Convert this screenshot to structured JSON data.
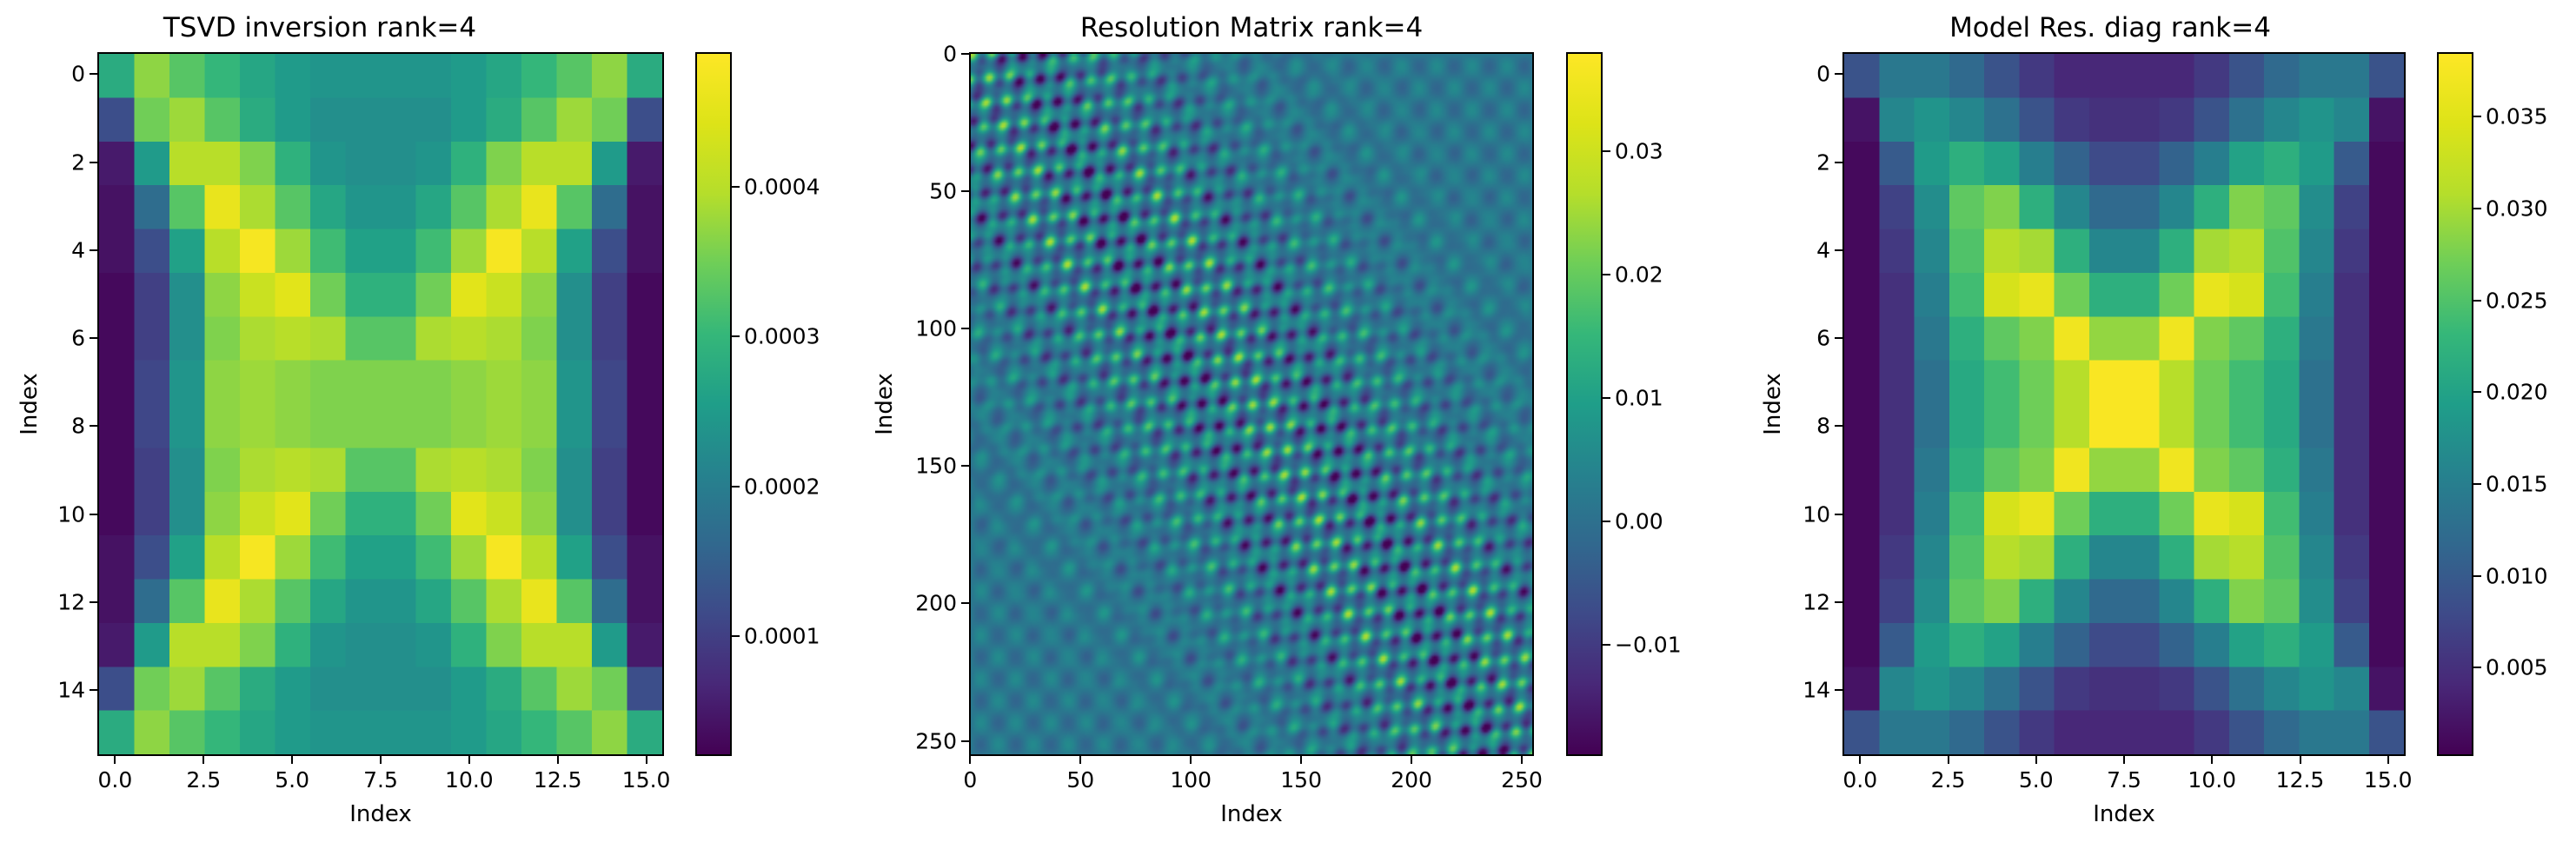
{
  "chart_data": [
    {
      "type": "heatmap",
      "title": "TSVD inversion rank=4",
      "xlabel": "Index",
      "ylabel": "Index",
      "rows": 16,
      "cols": 16,
      "xlim": [
        -0.5,
        15.5
      ],
      "ylim": [
        15.5,
        -0.5
      ],
      "x_ticks": [
        "0.0",
        "2.5",
        "5.0",
        "7.5",
        "10.0",
        "12.5",
        "15.0"
      ],
      "x_tick_values": [
        0,
        2.5,
        5,
        7.5,
        10,
        12.5,
        15
      ],
      "y_ticks": [
        "0",
        "2",
        "4",
        "6",
        "8",
        "10",
        "12",
        "14"
      ],
      "y_tick_values": [
        0,
        2,
        4,
        6,
        8,
        10,
        12,
        14
      ],
      "colorbar": {
        "min": 2e-05,
        "max": 0.00049,
        "ticks": [
          "0.0001",
          "0.0002",
          "0.0003",
          "0.0004"
        ],
        "tick_values": [
          0.0001,
          0.0002,
          0.0003,
          0.0004
        ]
      },
      "colormap": "viridis",
      "values": [
        [
          0.00028,
          0.00037,
          0.00033,
          0.0003,
          0.00027,
          0.00025,
          0.00024,
          0.00024,
          0.00024,
          0.00024,
          0.00025,
          0.00027,
          0.0003,
          0.00033,
          0.00037,
          0.00028
        ],
        [
          0.00012,
          0.00035,
          0.00038,
          0.00033,
          0.00028,
          0.00025,
          0.00023,
          0.00023,
          0.00023,
          0.00023,
          0.00025,
          0.00028,
          0.00033,
          0.00038,
          0.00035,
          0.00012
        ],
        [
          5e-05,
          0.00025,
          0.0004,
          0.0004,
          0.00036,
          0.00029,
          0.00024,
          0.00023,
          0.00023,
          0.00024,
          0.00029,
          0.00036,
          0.0004,
          0.0004,
          0.00025,
          5e-05
        ],
        [
          4e-05,
          0.00017,
          0.00033,
          0.00046,
          0.00039,
          0.00033,
          0.00027,
          0.00024,
          0.00024,
          0.00027,
          0.00033,
          0.00039,
          0.00046,
          0.00033,
          0.00017,
          4e-05
        ],
        [
          4e-05,
          0.00012,
          0.00026,
          0.0004,
          0.00048,
          0.00038,
          0.00031,
          0.00026,
          0.00026,
          0.00031,
          0.00038,
          0.00048,
          0.0004,
          0.00026,
          0.00012,
          4e-05
        ],
        [
          3e-05,
          0.0001,
          0.00023,
          0.00037,
          0.00042,
          0.00045,
          0.00035,
          0.00029,
          0.00029,
          0.00035,
          0.00045,
          0.00042,
          0.00037,
          0.00023,
          0.0001,
          3e-05
        ],
        [
          3e-05,
          0.0001,
          0.00023,
          0.00036,
          0.00039,
          0.0004,
          0.00039,
          0.00033,
          0.00033,
          0.00039,
          0.0004,
          0.00039,
          0.00036,
          0.00023,
          0.0001,
          3e-05
        ],
        [
          3e-05,
          0.00011,
          0.00024,
          0.00037,
          0.00038,
          0.00037,
          0.00036,
          0.00036,
          0.00036,
          0.00036,
          0.00037,
          0.00038,
          0.00037,
          0.00024,
          0.00011,
          3e-05
        ],
        [
          3e-05,
          0.00011,
          0.00024,
          0.00037,
          0.00038,
          0.00037,
          0.00036,
          0.00036,
          0.00036,
          0.00036,
          0.00037,
          0.00038,
          0.00037,
          0.00024,
          0.00011,
          3e-05
        ],
        [
          3e-05,
          0.0001,
          0.00023,
          0.00036,
          0.00039,
          0.0004,
          0.00039,
          0.00033,
          0.00033,
          0.00039,
          0.0004,
          0.00039,
          0.00036,
          0.00023,
          0.0001,
          3e-05
        ],
        [
          3e-05,
          0.0001,
          0.00023,
          0.00037,
          0.00042,
          0.00045,
          0.00035,
          0.00029,
          0.00029,
          0.00035,
          0.00045,
          0.00042,
          0.00037,
          0.00023,
          0.0001,
          3e-05
        ],
        [
          4e-05,
          0.00012,
          0.00026,
          0.0004,
          0.00048,
          0.00038,
          0.00031,
          0.00026,
          0.00026,
          0.00031,
          0.00038,
          0.00048,
          0.0004,
          0.00026,
          0.00012,
          4e-05
        ],
        [
          4e-05,
          0.00017,
          0.00033,
          0.00046,
          0.00039,
          0.00033,
          0.00027,
          0.00024,
          0.00024,
          0.00027,
          0.00033,
          0.00039,
          0.00046,
          0.00033,
          0.00017,
          4e-05
        ],
        [
          5e-05,
          0.00025,
          0.0004,
          0.0004,
          0.00036,
          0.00029,
          0.00024,
          0.00023,
          0.00023,
          0.00024,
          0.00029,
          0.00036,
          0.0004,
          0.0004,
          0.00025,
          5e-05
        ],
        [
          0.00012,
          0.00035,
          0.00038,
          0.00033,
          0.00028,
          0.00025,
          0.00023,
          0.00023,
          0.00023,
          0.00023,
          0.00025,
          0.00028,
          0.00033,
          0.00038,
          0.00035,
          0.00012
        ],
        [
          0.00028,
          0.00037,
          0.00033,
          0.0003,
          0.00027,
          0.00025,
          0.00024,
          0.00024,
          0.00024,
          0.00024,
          0.00025,
          0.00027,
          0.0003,
          0.00033,
          0.00037,
          0.00028
        ]
      ]
    },
    {
      "type": "heatmap",
      "title": "Resolution Matrix rank=4",
      "xlabel": "Index",
      "ylabel": "Index",
      "rows": 256,
      "cols": 256,
      "xlim": [
        -0.5,
        255.5
      ],
      "ylim": [
        255.5,
        -0.5
      ],
      "x_ticks": [
        "0",
        "50",
        "100",
        "150",
        "200",
        "250"
      ],
      "x_tick_values": [
        0,
        50,
        100,
        150,
        200,
        250
      ],
      "y_ticks": [
        "0",
        "50",
        "100",
        "150",
        "200",
        "250"
      ],
      "y_tick_values": [
        0,
        50,
        100,
        150,
        200,
        250
      ],
      "colorbar": {
        "min": -0.019,
        "max": 0.038,
        "ticks": [
          "−0.01",
          "0.00",
          "0.01",
          "0.02",
          "0.03"
        ],
        "tick_values": [
          -0.01,
          0.0,
          0.01,
          0.02,
          0.03
        ]
      },
      "colormap": "viridis",
      "values_note": "256x256 oscillatory field reconstructed by script"
    },
    {
      "type": "heatmap",
      "title": "Model Res. diag rank=4",
      "xlabel": "Index",
      "ylabel": "Index",
      "rows": 16,
      "cols": 16,
      "xlim": [
        -0.5,
        15.5
      ],
      "ylim": [
        15.5,
        -0.5
      ],
      "x_ticks": [
        "0.0",
        "2.5",
        "5.0",
        "7.5",
        "10.0",
        "12.5",
        "15.0"
      ],
      "x_tick_values": [
        0,
        2.5,
        5,
        7.5,
        10,
        12.5,
        15
      ],
      "y_ticks": [
        "0",
        "2",
        "4",
        "6",
        "8",
        "10",
        "12",
        "14"
      ],
      "y_tick_values": [
        0,
        2,
        4,
        6,
        8,
        10,
        12,
        14
      ],
      "colorbar": {
        "min": 0.0002,
        "max": 0.0385,
        "ticks": [
          "0.005",
          "0.010",
          "0.015",
          "0.020",
          "0.025",
          "0.030",
          "0.035"
        ],
        "tick_values": [
          0.005,
          0.01,
          0.015,
          0.02,
          0.025,
          0.03,
          0.035
        ]
      },
      "colormap": "viridis",
      "values": [
        [
          0.009,
          0.014,
          0.014,
          0.012,
          0.009,
          0.006,
          0.004,
          0.004,
          0.004,
          0.004,
          0.006,
          0.009,
          0.012,
          0.014,
          0.014,
          0.009
        ],
        [
          0.002,
          0.016,
          0.018,
          0.016,
          0.013,
          0.009,
          0.006,
          0.005,
          0.005,
          0.006,
          0.009,
          0.013,
          0.016,
          0.018,
          0.016,
          0.002
        ],
        [
          0.001,
          0.01,
          0.019,
          0.022,
          0.02,
          0.015,
          0.011,
          0.008,
          0.008,
          0.011,
          0.015,
          0.02,
          0.022,
          0.019,
          0.01,
          0.001
        ],
        [
          0.001,
          0.007,
          0.017,
          0.026,
          0.028,
          0.022,
          0.016,
          0.012,
          0.012,
          0.016,
          0.022,
          0.028,
          0.026,
          0.017,
          0.007,
          0.001
        ],
        [
          0.001,
          0.006,
          0.016,
          0.025,
          0.031,
          0.03,
          0.022,
          0.016,
          0.016,
          0.022,
          0.03,
          0.031,
          0.025,
          0.016,
          0.006,
          0.001
        ],
        [
          0.001,
          0.005,
          0.015,
          0.024,
          0.034,
          0.036,
          0.027,
          0.022,
          0.022,
          0.027,
          0.036,
          0.034,
          0.024,
          0.015,
          0.005,
          0.001
        ],
        [
          0.001,
          0.005,
          0.014,
          0.022,
          0.026,
          0.028,
          0.037,
          0.029,
          0.029,
          0.037,
          0.028,
          0.026,
          0.022,
          0.014,
          0.005,
          0.001
        ],
        [
          0.001,
          0.005,
          0.013,
          0.021,
          0.024,
          0.027,
          0.031,
          0.038,
          0.038,
          0.031,
          0.027,
          0.024,
          0.021,
          0.013,
          0.005,
          0.001
        ],
        [
          0.001,
          0.005,
          0.013,
          0.021,
          0.024,
          0.027,
          0.031,
          0.038,
          0.038,
          0.031,
          0.027,
          0.024,
          0.021,
          0.013,
          0.005,
          0.001
        ],
        [
          0.001,
          0.005,
          0.014,
          0.022,
          0.026,
          0.028,
          0.037,
          0.029,
          0.029,
          0.037,
          0.028,
          0.026,
          0.022,
          0.014,
          0.005,
          0.001
        ],
        [
          0.001,
          0.005,
          0.015,
          0.024,
          0.034,
          0.036,
          0.027,
          0.022,
          0.022,
          0.027,
          0.036,
          0.034,
          0.024,
          0.015,
          0.005,
          0.001
        ],
        [
          0.001,
          0.006,
          0.016,
          0.025,
          0.031,
          0.03,
          0.022,
          0.016,
          0.016,
          0.022,
          0.03,
          0.031,
          0.025,
          0.016,
          0.006,
          0.001
        ],
        [
          0.001,
          0.007,
          0.017,
          0.026,
          0.028,
          0.022,
          0.016,
          0.012,
          0.012,
          0.016,
          0.022,
          0.028,
          0.026,
          0.017,
          0.007,
          0.001
        ],
        [
          0.001,
          0.01,
          0.019,
          0.022,
          0.02,
          0.015,
          0.011,
          0.008,
          0.008,
          0.011,
          0.015,
          0.02,
          0.022,
          0.019,
          0.01,
          0.001
        ],
        [
          0.002,
          0.016,
          0.018,
          0.016,
          0.013,
          0.009,
          0.006,
          0.005,
          0.005,
          0.006,
          0.009,
          0.013,
          0.016,
          0.018,
          0.016,
          0.002
        ],
        [
          0.009,
          0.014,
          0.014,
          0.012,
          0.009,
          0.006,
          0.004,
          0.004,
          0.004,
          0.004,
          0.006,
          0.009,
          0.012,
          0.014,
          0.014,
          0.009
        ]
      ]
    }
  ]
}
